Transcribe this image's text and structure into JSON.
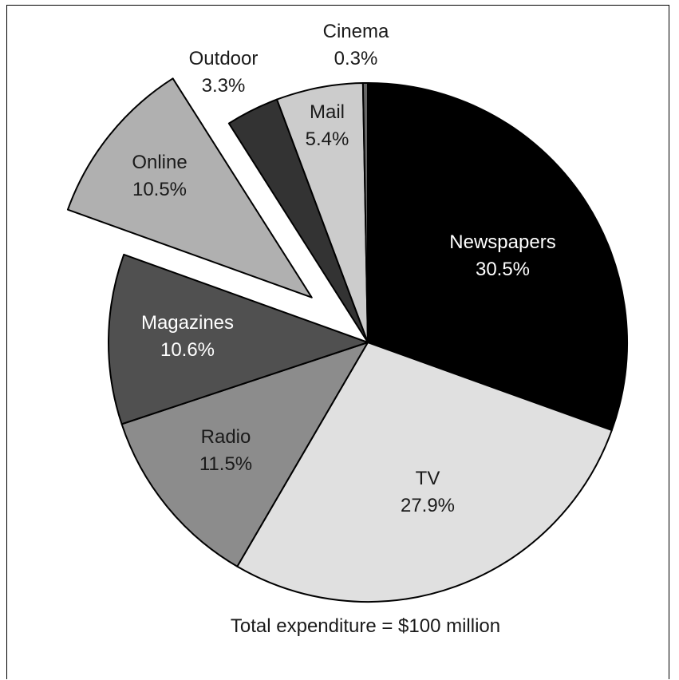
{
  "chart_data": {
    "type": "pie",
    "title": "",
    "caption": "Total expenditure = $100 million",
    "start_angle_deg": 0,
    "direction": "clockwise",
    "slices": [
      {
        "label": "Newspapers",
        "value": 30.5,
        "display": "30.5%",
        "color": "#000000",
        "text_color": "#ffffff",
        "exploded": false
      },
      {
        "label": "TV",
        "value": 27.9,
        "display": "27.9%",
        "color": "#e0e0e0",
        "text_color": "#1a1a1a",
        "exploded": false
      },
      {
        "label": "Radio",
        "value": 11.5,
        "display": "11.5%",
        "color": "#8c8c8c",
        "text_color": "#1a1a1a",
        "exploded": false
      },
      {
        "label": "Magazines",
        "value": 10.6,
        "display": "10.6%",
        "color": "#505050",
        "text_color": "#ffffff",
        "exploded": false
      },
      {
        "label": "Online",
        "value": 10.5,
        "display": "10.5%",
        "color": "#b0b0b0",
        "text_color": "#1a1a1a",
        "exploded": true
      },
      {
        "label": "Outdoor",
        "value": 3.3,
        "display": "3.3%",
        "color": "#333333",
        "text_color": "#1a1a1a",
        "exploded": false
      },
      {
        "label": "Mail",
        "value": 5.4,
        "display": "5.4%",
        "color": "#cccccc",
        "text_color": "#1a1a1a",
        "exploded": false
      },
      {
        "label": "Cinema",
        "value": 0.3,
        "display": "0.3%",
        "color": "#666666",
        "text_color": "#1a1a1a",
        "exploded": false
      }
    ]
  }
}
